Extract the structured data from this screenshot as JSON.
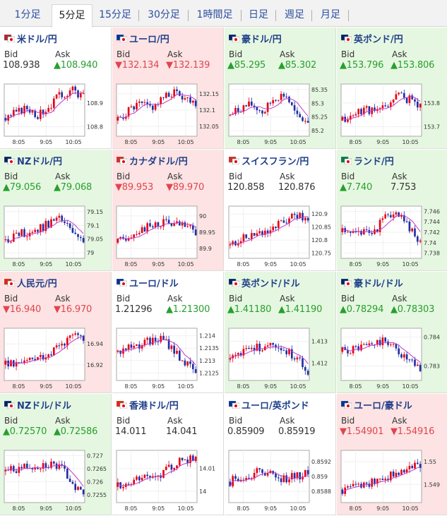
{
  "tabs": [
    "1分足",
    "5分足",
    "15分足",
    "30分足",
    "1時間足",
    "日足",
    "週足",
    "月足"
  ],
  "active_tab": 1,
  "labels": {
    "bid": "Bid",
    "ask": "Ask"
  },
  "colors": {
    "up_bg": "#e6f7e1",
    "down_bg": "#fde3e3",
    "up_text": "#26a02e",
    "down_text": "#e0454f",
    "candle_up": "#e60012",
    "candle_down": "#1f2fa5",
    "ma": "#c03ac9"
  },
  "pairs": [
    {
      "name": "米ドル/円",
      "flag": "us-jp-flag",
      "state": "flat",
      "bid": "108.938",
      "ask": "▲108.940",
      "bid_dir": "flat",
      "ask_dir": "up",
      "chart_data": {
        "type": "candlestick",
        "x": [
          "8:05",
          "9:05",
          "10:05"
        ],
        "yticks": [
          "108.9",
          "108.8"
        ],
        "ylim": [
          108.76,
          108.98
        ],
        "seed": 3,
        "trend": [
          0.35,
          0.45,
          0.55,
          0.4,
          0.6,
          0.8,
          0.9,
          0.75
        ]
      }
    },
    {
      "name": "ユーロ/円",
      "flag": "eu-jp-flag",
      "state": "down",
      "bid": "▼132.134",
      "ask": "▼132.139",
      "bid_dir": "down",
      "ask_dir": "down",
      "chart_data": {
        "type": "candlestick",
        "x": [
          "8:05",
          "9:05",
          "10:05"
        ],
        "yticks": [
          "132.15",
          "132.1",
          "132.05"
        ],
        "ylim": [
          132.02,
          132.18
        ],
        "seed": 5,
        "trend": [
          0.3,
          0.5,
          0.6,
          0.55,
          0.7,
          0.85,
          0.75,
          0.65
        ]
      }
    },
    {
      "name": "豪ドル/円",
      "flag": "au-jp-flag",
      "state": "up",
      "bid": "▲85.295",
      "ask": "▲85.302",
      "bid_dir": "up",
      "ask_dir": "up",
      "chart_data": {
        "type": "candlestick",
        "x": [
          "8:05",
          "9:05",
          "10:05"
        ],
        "yticks": [
          "85.35",
          "85.3",
          "85.25",
          "85.2"
        ],
        "ylim": [
          85.18,
          85.37
        ],
        "seed": 7,
        "trend": [
          0.4,
          0.55,
          0.6,
          0.45,
          0.75,
          0.8,
          0.35,
          0.3
        ]
      }
    },
    {
      "name": "英ポンド/円",
      "flag": "gb-jp-flag",
      "state": "up",
      "bid": "▲153.796",
      "ask": "▲153.806",
      "bid_dir": "up",
      "ask_dir": "up",
      "chart_data": {
        "type": "candlestick",
        "x": [
          "8:05",
          "9:05",
          "10:05"
        ],
        "yticks": [
          "153.8",
          "153.7"
        ],
        "ylim": [
          153.66,
          153.88
        ],
        "seed": 11,
        "trend": [
          0.3,
          0.4,
          0.55,
          0.45,
          0.6,
          0.8,
          0.7,
          0.6
        ]
      }
    },
    {
      "name": "NZドル/円",
      "flag": "nz-jp-flag",
      "state": "up",
      "bid": "▲79.056",
      "ask": "▲79.068",
      "bid_dir": "up",
      "ask_dir": "up",
      "chart_data": {
        "type": "candlestick",
        "x": [
          "8:05",
          "9:05",
          "10:05"
        ],
        "yticks": [
          "79.15",
          "79.1",
          "79.05",
          "79"
        ],
        "ylim": [
          78.98,
          79.17
        ],
        "seed": 13,
        "trend": [
          0.35,
          0.45,
          0.5,
          0.55,
          0.7,
          0.75,
          0.5,
          0.25
        ]
      }
    },
    {
      "name": "カナダドル/円",
      "flag": "ca-jp-flag",
      "state": "down",
      "bid": "▼89.953",
      "ask": "▼89.970",
      "bid_dir": "down",
      "ask_dir": "down",
      "chart_data": {
        "type": "candlestick",
        "x": [
          "8:05",
          "9:05",
          "10:05"
        ],
        "yticks": [
          "90",
          "89.95",
          "89.9"
        ],
        "ylim": [
          89.87,
          90.03
        ],
        "seed": 17,
        "trend": [
          0.3,
          0.45,
          0.55,
          0.6,
          0.7,
          0.65,
          0.6,
          0.5
        ]
      }
    },
    {
      "name": "スイスフラン/円",
      "flag": "ch-jp-flag",
      "state": "flat",
      "bid": "120.858",
      "ask": "120.876",
      "bid_dir": "flat",
      "ask_dir": "flat",
      "chart_data": {
        "type": "candlestick",
        "x": [
          "8:05",
          "9:05",
          "10:05"
        ],
        "yticks": [
          "120.9",
          "120.85",
          "120.8",
          "120.75"
        ],
        "ylim": [
          120.73,
          120.93
        ],
        "seed": 19,
        "trend": [
          0.25,
          0.35,
          0.45,
          0.5,
          0.6,
          0.7,
          0.85,
          0.75
        ]
      }
    },
    {
      "name": "ランド/円",
      "flag": "za-jp-flag",
      "state": "up",
      "bid": "▲7.740",
      "ask": "7.753",
      "bid_dir": "up",
      "ask_dir": "flat",
      "chart_data": {
        "type": "candlestick",
        "x": [
          "8:05",
          "9:05",
          "10:05"
        ],
        "yticks": [
          "7.746",
          "7.744",
          "7.742",
          "7.74",
          "7.738"
        ],
        "ylim": [
          7.737,
          7.747
        ],
        "seed": 23,
        "trend": [
          0.5,
          0.45,
          0.5,
          0.55,
          0.85,
          0.8,
          0.6,
          0.3
        ]
      }
    },
    {
      "name": "人民元/円",
      "flag": "cn-jp-flag",
      "state": "down",
      "bid": "▼16.940",
      "ask": "▼16.970",
      "bid_dir": "down",
      "ask_dir": "down",
      "chart_data": {
        "type": "candlestick",
        "x": [
          "8:05",
          "9:05",
          "10:05"
        ],
        "yticks": [
          "16.94",
          "16.92"
        ],
        "ylim": [
          16.905,
          16.955
        ],
        "seed": 29,
        "trend": [
          0.3,
          0.35,
          0.4,
          0.45,
          0.55,
          0.7,
          0.85,
          0.8
        ]
      }
    },
    {
      "name": "ユーロ/ドル",
      "flag": "eu-us-flag",
      "state": "flat",
      "bid": "1.21296",
      "ask": "▲1.21300",
      "bid_dir": "flat",
      "ask_dir": "up",
      "chart_data": {
        "type": "candlestick",
        "x": [
          "8:05",
          "9:05",
          "10:05"
        ],
        "yticks": [
          "1.214",
          "1.2135",
          "1.213",
          "1.2125"
        ],
        "ylim": [
          1.2122,
          1.2143
        ],
        "seed": 31,
        "trend": [
          0.55,
          0.65,
          0.7,
          0.75,
          0.8,
          0.6,
          0.35,
          0.15
        ]
      }
    },
    {
      "name": "英ポンド/ドル",
      "flag": "gb-us-flag",
      "state": "up",
      "bid": "▲1.41180",
      "ask": "▲1.41190",
      "bid_dir": "up",
      "ask_dir": "up",
      "chart_data": {
        "type": "candlestick",
        "x": [
          "8:05",
          "9:05",
          "10:05"
        ],
        "yticks": [
          "1.413",
          "1.412"
        ],
        "ylim": [
          1.4112,
          1.4136
        ],
        "seed": 37,
        "trend": [
          0.4,
          0.5,
          0.6,
          0.65,
          0.7,
          0.6,
          0.4,
          0.2
        ]
      }
    },
    {
      "name": "豪ドル/ドル",
      "flag": "au-us-flag",
      "state": "up",
      "bid": "▲0.78294",
      "ask": "▲0.78303",
      "bid_dir": "up",
      "ask_dir": "up",
      "chart_data": {
        "type": "candlestick",
        "x": [
          "8:05",
          "9:05",
          "10:05"
        ],
        "yticks": [
          "0.784",
          "0.783"
        ],
        "ylim": [
          0.7825,
          0.7843
        ],
        "seed": 41,
        "trend": [
          0.55,
          0.6,
          0.65,
          0.7,
          0.75,
          0.55,
          0.35,
          0.2
        ]
      }
    },
    {
      "name": "NZドル/ドル",
      "flag": "nz-us-flag",
      "state": "up",
      "bid": "▲0.72570",
      "ask": "▲0.72586",
      "bid_dir": "up",
      "ask_dir": "up",
      "chart_data": {
        "type": "candlestick",
        "x": [
          "8:05",
          "9:05",
          "10:05"
        ],
        "yticks": [
          "0.727",
          "0.7265",
          "0.726",
          "0.7255"
        ],
        "ylim": [
          0.7252,
          0.7272
        ],
        "seed": 43,
        "trend": [
          0.6,
          0.65,
          0.7,
          0.72,
          0.75,
          0.65,
          0.4,
          0.15
        ]
      }
    },
    {
      "name": "香港ドル/円",
      "flag": "hk-jp-flag",
      "state": "flat",
      "bid": "14.011",
      "ask": "14.041",
      "bid_dir": "flat",
      "ask_dir": "flat",
      "chart_data": {
        "type": "candlestick",
        "x": [
          "8:05",
          "9:05",
          "10:05"
        ],
        "yticks": [
          "14.01",
          "14"
        ],
        "ylim": [
          13.995,
          14.018
        ],
        "seed": 47,
        "trend": [
          0.3,
          0.35,
          0.45,
          0.5,
          0.55,
          0.7,
          0.85,
          0.8
        ]
      }
    },
    {
      "name": "ユーロ/英ポンド",
      "flag": "eu-gb-flag",
      "state": "flat",
      "bid": "0.85909",
      "ask": "0.85919",
      "bid_dir": "flat",
      "ask_dir": "flat",
      "chart_data": {
        "type": "candlestick",
        "x": [
          "8:05",
          "9:05",
          "10:05"
        ],
        "yticks": [
          "0.8592",
          "0.859",
          "0.8588"
        ],
        "ylim": [
          0.85865,
          0.85935
        ],
        "seed": 53,
        "trend": [
          0.4,
          0.5,
          0.55,
          0.6,
          0.5,
          0.45,
          0.5,
          0.55
        ]
      }
    },
    {
      "name": "ユーロ/豪ドル",
      "flag": "eu-au-flag",
      "state": "down",
      "bid": "▼1.54901",
      "ask": "▼1.54916",
      "bid_dir": "down",
      "ask_dir": "down",
      "chart_data": {
        "type": "candlestick",
        "x": [
          "8:05",
          "9:05",
          "10:05"
        ],
        "yticks": [
          "1.55",
          "1.549"
        ],
        "ylim": [
          1.5482,
          1.5505
        ],
        "seed": 59,
        "trend": [
          0.25,
          0.3,
          0.35,
          0.4,
          0.5,
          0.6,
          0.7,
          0.75
        ]
      }
    }
  ]
}
